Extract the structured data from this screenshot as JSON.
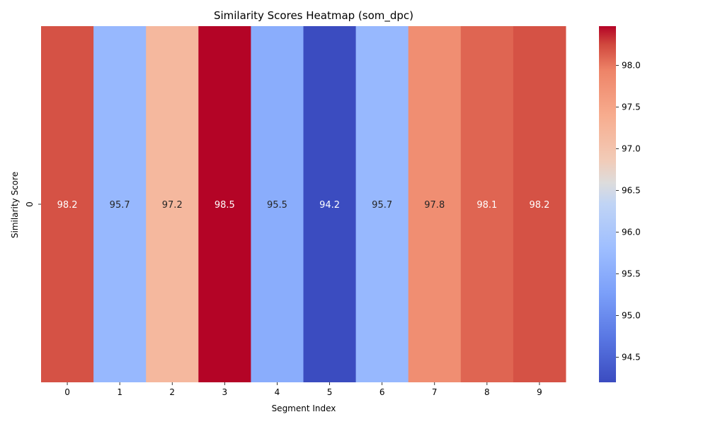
{
  "chart_data": {
    "type": "heatmap",
    "title": "Similarity Scores Heatmap (som_dpc)",
    "xlabel": "Segment Index",
    "ylabel": "Similarity Score",
    "x_categories": [
      "0",
      "1",
      "2",
      "3",
      "4",
      "5",
      "6",
      "7",
      "8",
      "9"
    ],
    "y_categories": [
      "0"
    ],
    "values": [
      [
        98.2,
        95.7,
        97.2,
        98.5,
        95.5,
        94.2,
        95.7,
        97.8,
        98.1,
        98.2
      ]
    ],
    "value_format": "0.1f",
    "colormap": "coolwarm",
    "colorbar": {
      "vmin": 94.2,
      "vmax": 98.47,
      "ticks": [
        94.5,
        95.0,
        95.5,
        96.0,
        96.5,
        97.0,
        97.5,
        98.0
      ],
      "tick_labels": [
        "94.5",
        "95.0",
        "95.5",
        "96.0",
        "96.5",
        "97.0",
        "97.5",
        "98.0"
      ]
    },
    "grid": false
  }
}
